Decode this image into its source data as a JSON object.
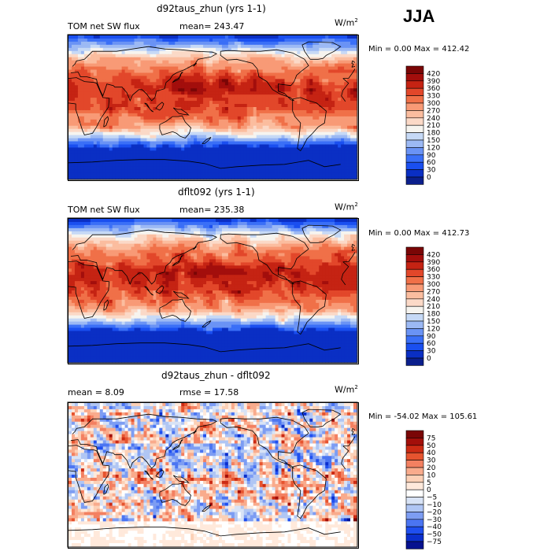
{
  "season": "JJA",
  "colors": {
    "abs_scale": [
      "#0b1f8c",
      "#0a2fc4",
      "#1a4ff0",
      "#3a6ff7",
      "#6a93f5",
      "#9cb9f4",
      "#c6d9f6",
      "#f6f4ef",
      "#fbd9c7",
      "#fbbd9f",
      "#f89a76",
      "#f07048",
      "#e2472a",
      "#c52313",
      "#a30e0c",
      "#7a0606"
    ],
    "diff_scale": [
      "#06118f",
      "#0b2fcd",
      "#1f4ff0",
      "#4b75f2",
      "#7d9df3",
      "#b0c6f4",
      "#d8e3f6",
      "#ffffff",
      "#ffe9db",
      "#fcd0b6",
      "#f9ab8c",
      "#f38061",
      "#e6542f",
      "#cc2b14",
      "#a30f0a",
      "#7a0606"
    ]
  },
  "chart_data": [
    {
      "type": "heatmap",
      "title": "d92taus_zhun (yrs 1-1)",
      "field_label": "TOM net SW flux",
      "mean_text": "mean= 243.47",
      "units_base": "W/m",
      "units_exp": "2",
      "min_max_text": "Min =    0.00 Max = 412.42",
      "legend_ticks": [
        "420",
        "390",
        "360",
        "330",
        "300",
        "270",
        "240",
        "210",
        "180",
        "150",
        "120",
        "90",
        "60",
        "30",
        "0"
      ],
      "levels": [
        0,
        30,
        60,
        90,
        120,
        150,
        180,
        210,
        240,
        270,
        300,
        330,
        360,
        390,
        420
      ]
    },
    {
      "type": "heatmap",
      "title": "dflt092 (yrs 1-1)",
      "field_label": "TOM net SW flux",
      "mean_text": "mean= 235.38",
      "units_base": "W/m",
      "units_exp": "2",
      "min_max_text": "Min =    0.00 Max = 412.73",
      "legend_ticks": [
        "420",
        "390",
        "360",
        "330",
        "300",
        "270",
        "240",
        "210",
        "180",
        "150",
        "120",
        "90",
        "60",
        "30",
        "0"
      ],
      "levels": [
        0,
        30,
        60,
        90,
        120,
        150,
        180,
        210,
        240,
        270,
        300,
        330,
        360,
        390,
        420
      ]
    },
    {
      "type": "heatmap",
      "title": "d92taus_zhun - dflt092",
      "mean_text": "mean =    8.09",
      "rmse_text": "rmse =   17.58",
      "units_base": "W/m",
      "units_exp": "2",
      "min_max_text": "Min = -54.02 Max = 105.61",
      "legend_ticks": [
        "75",
        "50",
        "40",
        "30",
        "20",
        "10",
        "5",
        "0",
        "−5",
        "−10",
        "−20",
        "−30",
        "−40",
        "−50",
        "−75"
      ],
      "levels": [
        -75,
        -50,
        -40,
        -30,
        -20,
        -10,
        -5,
        0,
        5,
        10,
        20,
        30,
        40,
        50,
        75
      ]
    }
  ]
}
